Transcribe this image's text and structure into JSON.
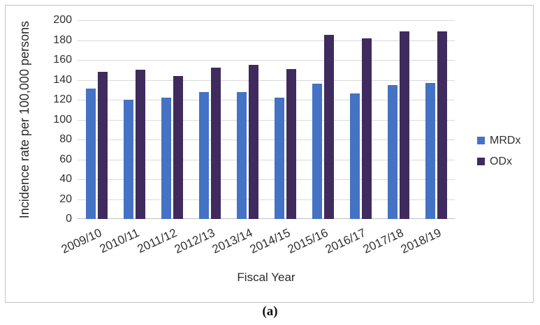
{
  "figure": {
    "caption": "(a)"
  },
  "chart_data": {
    "type": "bar",
    "title": "",
    "xlabel": "Fiscal Year",
    "ylabel": "Incidence rate per 100,000 persons",
    "categories": [
      "2009/10",
      "2010/11",
      "2011/12",
      "2012/13",
      "2013/14",
      "2014/15",
      "2015/16",
      "2016/17",
      "2017/18",
      "2018/19"
    ],
    "series": [
      {
        "name": "MRDx",
        "color": "#4472C4",
        "values": [
          131,
          120,
          122,
          128,
          128,
          122,
          136,
          126,
          135,
          137
        ]
      },
      {
        "name": "ODx",
        "color": "#3F2B5E",
        "values": [
          148,
          150,
          144,
          152,
          155,
          151,
          185,
          182,
          189,
          189
        ]
      }
    ],
    "ylim": [
      0,
      200
    ],
    "ytick_step": 20,
    "yticks": [
      0,
      20,
      40,
      60,
      80,
      100,
      120,
      140,
      160,
      180,
      200
    ],
    "grid": true,
    "legend_position": "right",
    "bar_orientation": "vertical"
  },
  "colors": {
    "gridline": "#d9d9d9",
    "frame_border": "#c3c3c3",
    "text": "#303030"
  }
}
